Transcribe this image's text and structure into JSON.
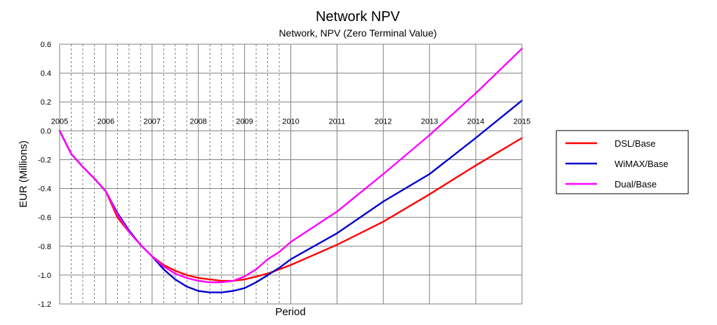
{
  "chart_data": {
    "type": "line",
    "title": "Network NPV",
    "subtitle": "Network, NPV (Zero Terminal Value)",
    "xlabel": "Period",
    "ylabel": "EUR  (Millions)",
    "xlim": [
      2005,
      2015
    ],
    "ylim": [
      -1.2,
      0.6
    ],
    "y_ticks": [
      "0.6",
      "0.4",
      "0.2",
      "0.0",
      "-0.2",
      "-0.4",
      "-0.6",
      "-0.8",
      "-1.0",
      "-1.2"
    ],
    "x_ticks": [
      "2005",
      "2006",
      "2007",
      "2008",
      "2009",
      "2010",
      "2011",
      "2012",
      "2013",
      "2014",
      "2015"
    ],
    "grid": true,
    "legend_position": "right",
    "series": [
      {
        "name": "DSL/Base",
        "color": "#ff0000",
        "x": [
          2005,
          2005.25,
          2005.5,
          2005.75,
          2006,
          2006.25,
          2006.5,
          2006.75,
          2007,
          2007.25,
          2007.5,
          2007.75,
          2008,
          2008.25,
          2008.5,
          2008.75,
          2009,
          2009.25,
          2009.5,
          2009.75,
          2010,
          2011,
          2012,
          2013,
          2014,
          2015
        ],
        "y": [
          0.0,
          -0.16,
          -0.25,
          -0.33,
          -0.42,
          -0.6,
          -0.7,
          -0.79,
          -0.87,
          -0.93,
          -0.97,
          -1.0,
          -1.02,
          -1.03,
          -1.04,
          -1.04,
          -1.03,
          -1.01,
          -0.99,
          -0.96,
          -0.93,
          -0.79,
          -0.63,
          -0.44,
          -0.24,
          -0.05
        ]
      },
      {
        "name": "WiMAX/Base",
        "color": "#0000cc",
        "x": [
          2005,
          2005.25,
          2005.5,
          2005.75,
          2006,
          2006.25,
          2006.5,
          2006.75,
          2007,
          2007.25,
          2007.5,
          2007.75,
          2008,
          2008.25,
          2008.5,
          2008.75,
          2009,
          2009.25,
          2009.5,
          2009.75,
          2010,
          2011,
          2012,
          2013,
          2014,
          2015
        ],
        "y": [
          0.0,
          -0.16,
          -0.25,
          -0.33,
          -0.42,
          -0.57,
          -0.69,
          -0.79,
          -0.87,
          -0.96,
          -1.03,
          -1.08,
          -1.11,
          -1.12,
          -1.12,
          -1.11,
          -1.09,
          -1.05,
          -1.0,
          -0.95,
          -0.89,
          -0.71,
          -0.49,
          -0.3,
          -0.05,
          0.21
        ]
      },
      {
        "name": "Dual/Base",
        "color": "#ff00ff",
        "x": [
          2005,
          2005.25,
          2005.5,
          2005.75,
          2006,
          2006.25,
          2006.5,
          2006.75,
          2007,
          2007.25,
          2007.5,
          2007.75,
          2008,
          2008.25,
          2008.5,
          2008.75,
          2009,
          2009.25,
          2009.5,
          2009.75,
          2010,
          2011,
          2012,
          2013,
          2014,
          2015
        ],
        "y": [
          0.0,
          -0.16,
          -0.25,
          -0.33,
          -0.42,
          -0.58,
          -0.7,
          -0.79,
          -0.87,
          -0.94,
          -0.99,
          -1.02,
          -1.04,
          -1.05,
          -1.05,
          -1.04,
          -1.01,
          -0.96,
          -0.89,
          -0.84,
          -0.77,
          -0.56,
          -0.3,
          -0.03,
          0.26,
          0.57
        ]
      }
    ]
  }
}
